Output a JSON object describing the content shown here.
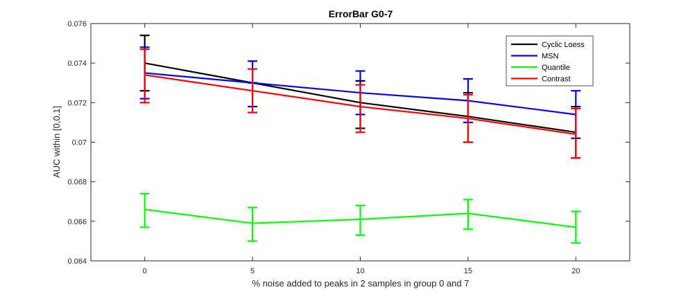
{
  "chart_data": {
    "type": "line",
    "title": "ErrorBar G0-7",
    "xlabel": "% noise added to peaks in 2 samples in group 0 and 7",
    "ylabel": "AUC within [0,0.1]",
    "x": [
      0,
      5,
      10,
      15,
      20
    ],
    "xlim": [
      -2.5,
      22.5
    ],
    "ylim": [
      0.064,
      0.076
    ],
    "xticks": [
      0,
      5,
      10,
      15,
      20
    ],
    "yticks": [
      0.064,
      0.066,
      0.068,
      0.07,
      0.072,
      0.074,
      0.076
    ],
    "ytick_labels": [
      "0.064",
      "0.066",
      "0.068",
      "0.07",
      "0.072",
      "0.074",
      "0.076"
    ],
    "grid": false,
    "legend_position": "top-right",
    "series": [
      {
        "name": "Cyclic Loess",
        "color": "#000000",
        "values": [
          0.074,
          0.073,
          0.072,
          0.0713,
          0.0705
        ],
        "err_low": [
          0.0726,
          0.073,
          0.0707,
          0.07,
          0.0692
        ],
        "err_high": [
          0.0754,
          0.073,
          0.0731,
          0.0725,
          0.0718
        ]
      },
      {
        "name": "MSN",
        "color": "#0000ff",
        "values": [
          0.0735,
          0.073,
          0.0725,
          0.0721,
          0.0714
        ],
        "err_low": [
          0.0722,
          0.0718,
          0.0714,
          0.071,
          0.0702
        ],
        "err_high": [
          0.0748,
          0.0741,
          0.0736,
          0.0732,
          0.0726
        ]
      },
      {
        "name": "Quantile",
        "color": "#00ff00",
        "values": [
          0.0666,
          0.0659,
          0.0661,
          0.0664,
          0.0657
        ],
        "err_low": [
          0.0657,
          0.065,
          0.0653,
          0.0656,
          0.0649
        ],
        "err_high": [
          0.0674,
          0.0667,
          0.0668,
          0.0671,
          0.0665
        ]
      },
      {
        "name": "Contrast",
        "color": "#ff0000",
        "values": [
          0.0734,
          0.0726,
          0.0718,
          0.0712,
          0.0704
        ],
        "err_low": [
          0.072,
          0.0715,
          0.0705,
          0.07,
          0.0692
        ],
        "err_high": [
          0.0747,
          0.0737,
          0.0729,
          0.0724,
          0.0717
        ]
      }
    ]
  }
}
